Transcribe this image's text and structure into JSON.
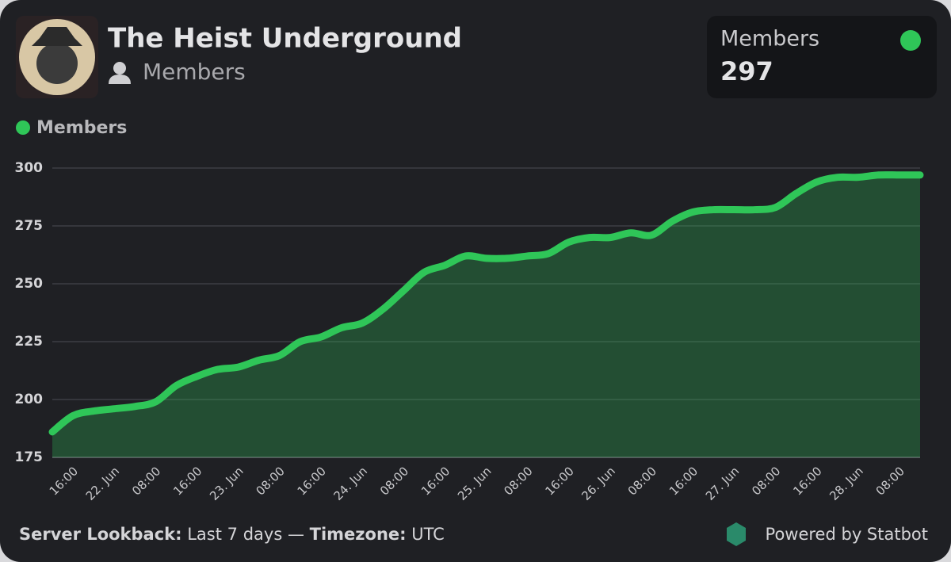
{
  "header": {
    "title": "The Heist Underground",
    "subtitle": "Members",
    "stat": {
      "label": "Members",
      "value": 297
    }
  },
  "footer": {
    "lookback_label": "Server Lookback:",
    "lookback": "Last 7 days",
    "separator": "—",
    "timezone_label": "Timezone:",
    "timezone": "UTC",
    "powered": "Powered by Statbot"
  },
  "chart_data": {
    "type": "area",
    "categories": [
      null,
      "16:00",
      null,
      "22. Jun",
      null,
      "08:00",
      null,
      "16:00",
      null,
      "23. Jun",
      null,
      "08:00",
      null,
      "16:00",
      null,
      "24. Jun",
      null,
      "08:00",
      null,
      "16:00",
      null,
      "25. Jun",
      null,
      "08:00",
      null,
      "16:00",
      null,
      "26. Jun",
      null,
      "08:00",
      null,
      "16:00",
      null,
      "27. Jun",
      null,
      "08:00",
      null,
      "16:00",
      null,
      "28. Jun",
      null,
      "08:00",
      null
    ],
    "series": [
      {
        "name": "Members",
        "color": "#2fc658",
        "values": [
          186,
          193,
          195,
          196,
          197,
          199,
          206,
          210,
          213,
          214,
          217,
          219,
          225,
          227,
          231,
          233,
          239,
          247,
          255,
          258,
          262,
          261,
          261,
          262,
          263,
          268,
          270,
          270,
          272,
          271,
          277,
          281,
          282,
          282,
          282,
          283,
          289,
          294,
          296,
          296,
          297,
          297,
          297
        ]
      }
    ],
    "ylim": [
      175,
      300
    ],
    "yticks": [
      175,
      200,
      225,
      250,
      275,
      300
    ],
    "grid": true
  }
}
